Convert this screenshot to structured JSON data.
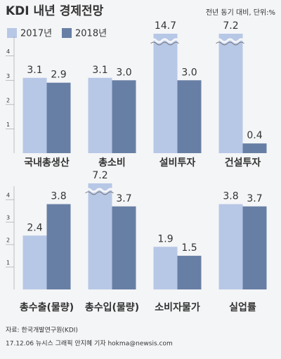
{
  "title": "KDI 내년 경제전망",
  "note": "전년 동기 대비, 단위:%",
  "source": "자료: 한국개발연구원(KDI)",
  "credit": "17.12.06 뉴시스 그래픽 안지혜 기자 hokma@newsis.com",
  "chart_data": [
    {
      "type": "bar",
      "categories": [
        "국내총생산",
        "총소비",
        "설비투자",
        "건설투자"
      ],
      "series": [
        {
          "name": "2017년",
          "color": "#b7c7e6",
          "values": [
            3.1,
            3.1,
            14.7,
            7.2
          ],
          "value_labels": [
            "3.1",
            "3.1",
            "14.7",
            "7.2"
          ]
        },
        {
          "name": "2018년",
          "color": "#687fa5",
          "values": [
            2.9,
            3.0,
            3.0,
            0.4
          ],
          "value_labels": [
            "2.9",
            "3.0",
            "3.0",
            "0.4"
          ]
        }
      ],
      "ylim": [
        0,
        4.8
      ],
      "yticks": [
        1,
        2,
        3,
        4
      ]
    },
    {
      "type": "bar",
      "categories": [
        "총수출(물량)",
        "총수입(물량)",
        "소비자물가",
        "실업률"
      ],
      "series": [
        {
          "name": "2017년",
          "color": "#b7c7e6",
          "values": [
            2.4,
            7.2,
            1.9,
            3.8
          ],
          "value_labels": [
            "2.4",
            "7.2",
            "1.9",
            "3.8"
          ]
        },
        {
          "name": "2018년",
          "color": "#687fa5",
          "values": [
            3.8,
            3.7,
            1.5,
            3.7
          ],
          "value_labels": [
            "3.8",
            "3.7",
            "1.5",
            "3.7"
          ]
        }
      ],
      "ylim": [
        0,
        4.6
      ],
      "yticks": [
        1,
        2,
        3,
        4
      ]
    }
  ]
}
